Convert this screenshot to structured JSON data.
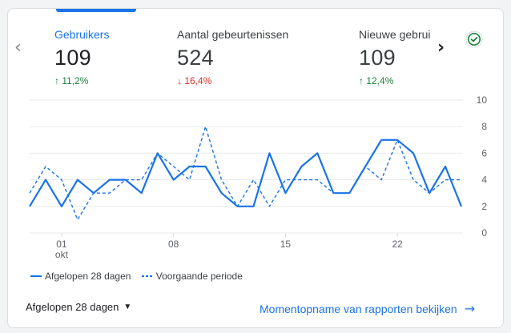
{
  "metrics": [
    {
      "label": "Gebruikers",
      "value": "109",
      "delta": "11,2%",
      "direction": "up"
    },
    {
      "label": "Aantal gebeurtenissen",
      "value": "524",
      "delta": "16,4%",
      "direction": "down"
    },
    {
      "label": "Nieuwe gebruikers",
      "value": "109",
      "delta": "12,4%",
      "direction": "up"
    }
  ],
  "icons": {
    "prev": "chevron-left-icon",
    "next": "chevron-right-icon",
    "status": "check-circle-icon",
    "up": "arrow-up-icon",
    "down": "arrow-down-icon"
  },
  "colors": {
    "accent": "#1a73e8",
    "positive": "#188038",
    "negative": "#d93025",
    "status_green": "#188038"
  },
  "chart_data": {
    "type": "line",
    "x_tick_labels": [
      "01",
      "08",
      "15",
      "22"
    ],
    "x_tick_sublabels": [
      "okt",
      "",
      "",
      ""
    ],
    "x_tick_index": [
      2,
      9,
      16,
      23
    ],
    "yticks_right": [
      10,
      8,
      6,
      4,
      2,
      0
    ],
    "ylim": [
      0,
      10
    ],
    "grid": true,
    "legend_position": "bottom-left",
    "series": [
      {
        "name": "Afgelopen 28 dagen",
        "style": "solid",
        "values": [
          2,
          4,
          2,
          4,
          3,
          4,
          4,
          3,
          6,
          4,
          5,
          5,
          3,
          2,
          2,
          6,
          3,
          5,
          6,
          3,
          3,
          5,
          7,
          7,
          6,
          3,
          5,
          2
        ]
      },
      {
        "name": "Voorgaande periode",
        "style": "dashed",
        "values": [
          3,
          5,
          4,
          1,
          3,
          3,
          4,
          4,
          6,
          5,
          4,
          8,
          4,
          2,
          4,
          2,
          4,
          4,
          4,
          3,
          3,
          5,
          4,
          7,
          4,
          3,
          4,
          4
        ]
      }
    ]
  },
  "footer": {
    "period_label": "Afgelopen 28 dagen",
    "report_link_label": "Momentopname van rapporten bekijken"
  }
}
